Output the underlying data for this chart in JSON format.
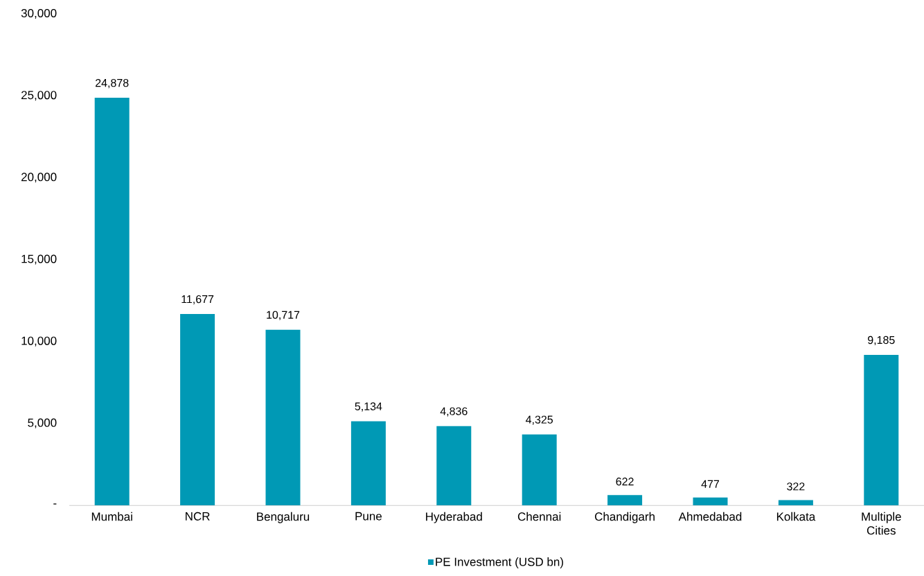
{
  "chart_data": {
    "type": "bar",
    "categories": [
      "Mumbai",
      "NCR",
      "Bengaluru",
      "Pune",
      "Hyderabad",
      "Chennai",
      "Chandigarh",
      "Ahmedabad",
      "Kolkata",
      "Multiple Cities"
    ],
    "series": [
      {
        "name": "PE Investment (USD bn)",
        "color": "#0099b5",
        "values": [
          24878,
          11677,
          10717,
          5134,
          4836,
          4325,
          622,
          477,
          322,
          9185
        ],
        "value_labels": [
          "24,878",
          "11,677",
          "10,717",
          "5,134",
          "4,836",
          "4,325",
          "622",
          "477",
          "322",
          "9,185"
        ]
      }
    ],
    "ylim": [
      0,
      30000
    ],
    "yticks": [
      {
        "value": 0,
        "label": "-"
      },
      {
        "value": 5000,
        "label": "5,000"
      },
      {
        "value": 10000,
        "label": "10,000"
      },
      {
        "value": 15000,
        "label": "15,000"
      },
      {
        "value": 20000,
        "label": "20,000"
      },
      {
        "value": 25000,
        "label": "25,000"
      },
      {
        "value": 30000,
        "label": "30,000"
      }
    ],
    "legend": "bottom",
    "grid": false
  }
}
